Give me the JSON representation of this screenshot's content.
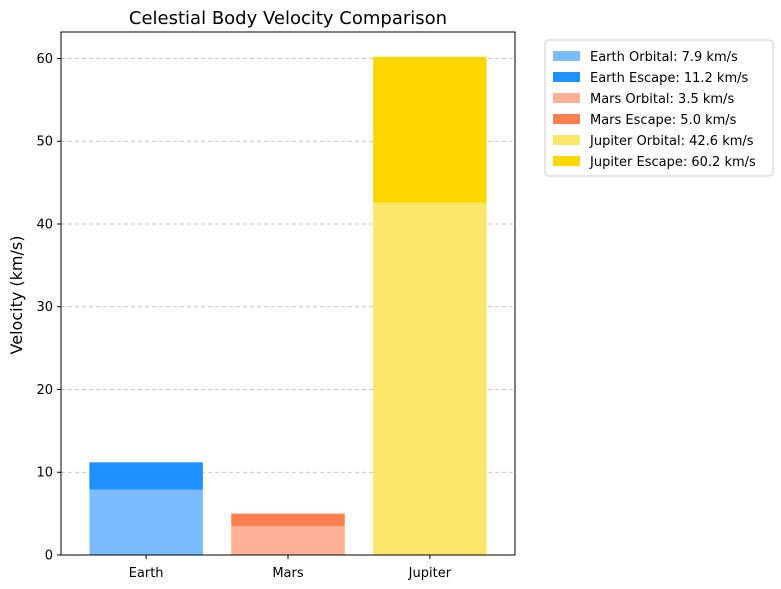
{
  "chart_data": {
    "type": "bar",
    "title": "Celestial Body Velocity Comparison",
    "xlabel": "",
    "ylabel": "Velocity (km/s)",
    "categories": [
      "Earth",
      "Mars",
      "Jupiter"
    ],
    "ylim": [
      0,
      63.2
    ],
    "yticks": [
      0,
      10,
      20,
      30,
      40,
      50,
      60
    ],
    "grid": "y-dashed",
    "legend_placement": "outside-top-right",
    "bars": [
      {
        "category": "Earth",
        "orbital": 7.9,
        "escape": 11.2,
        "orbital_color": "#7abcff",
        "escape_color": "#1e90ff"
      },
      {
        "category": "Mars",
        "orbital": 3.5,
        "escape": 5.0,
        "orbital_color": "#ffb095",
        "escape_color": "#ff7f50"
      },
      {
        "category": "Jupiter",
        "orbital": 42.6,
        "escape": 60.2,
        "orbital_color": "#fee66a",
        "escape_color": "#ffd700"
      }
    ],
    "legend": [
      {
        "label": "Earth Orbital: 7.9 km/s",
        "color": "#7abcff"
      },
      {
        "label": "Earth Escape: 11.2 km/s",
        "color": "#1e90ff"
      },
      {
        "label": "Mars Orbital: 3.5 km/s",
        "color": "#ffb095"
      },
      {
        "label": "Mars Escape: 5.0 km/s",
        "color": "#ff7f50"
      },
      {
        "label": "Jupiter Orbital: 42.6 km/s",
        "color": "#fee66a"
      },
      {
        "label": "Jupiter Escape: 60.2 km/s",
        "color": "#ffd700"
      }
    ]
  }
}
